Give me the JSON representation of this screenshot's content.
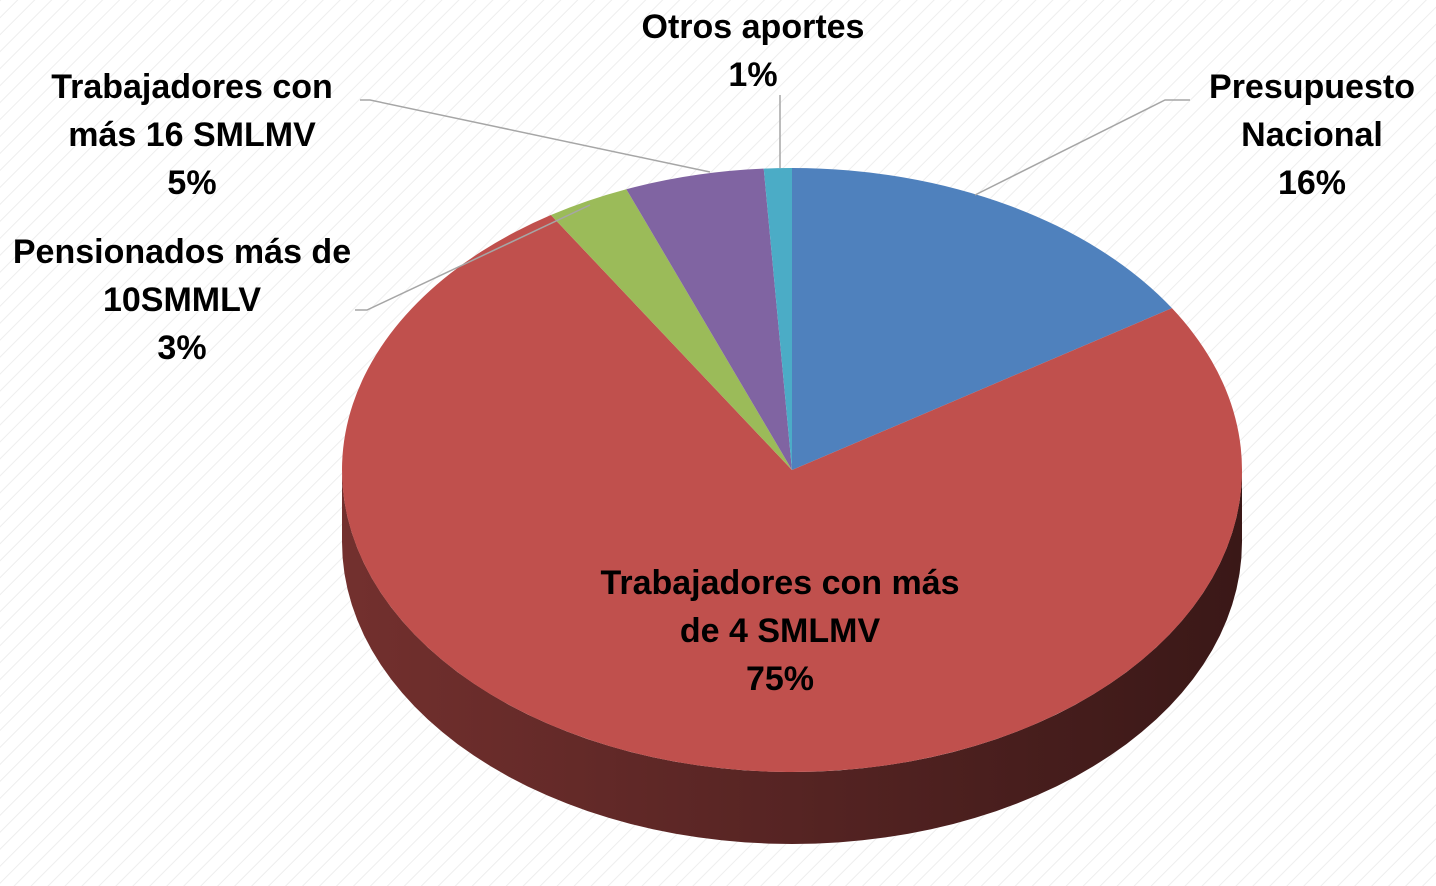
{
  "chart_data": {
    "type": "pie",
    "categories": [
      "Presupuesto Nacional",
      "Trabajadores con más de 4 SMLMV",
      "Pensionados más de 10SMMLV",
      "Trabajadores con más 16 SMLMV",
      "Otros aportes"
    ],
    "values": [
      16,
      75,
      3,
      5,
      1
    ],
    "value_labels": [
      "16%",
      "75%",
      "3%",
      "5%",
      "1%"
    ],
    "colors": [
      "#4f81bd",
      "#c0504d",
      "#9bbb59",
      "#8064a2",
      "#4bacc6"
    ]
  }
}
